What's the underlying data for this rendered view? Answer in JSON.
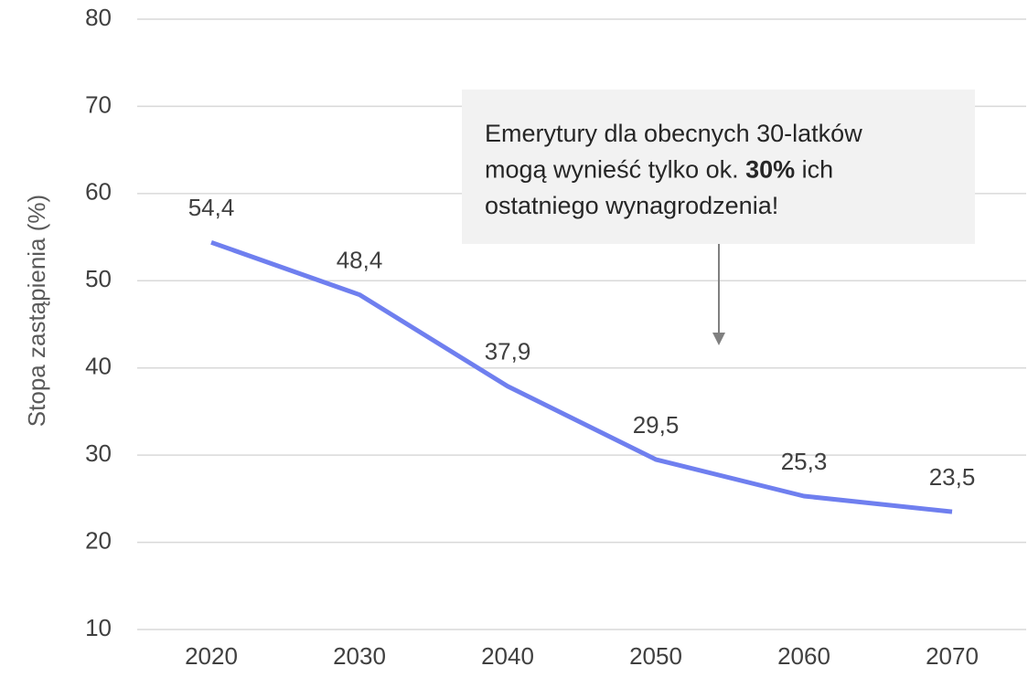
{
  "chart_data": {
    "type": "line",
    "y_label": "Stopa zastąpienia (%)",
    "categories": [
      "2020",
      "2030",
      "2040",
      "2050",
      "2060",
      "2070"
    ],
    "series": [
      {
        "name": "Stopa zastąpienia",
        "color": "#6f7fef",
        "values": [
          54.4,
          48.4,
          37.9,
          29.5,
          25.3,
          23.5
        ],
        "value_labels": [
          "54,4",
          "48,4",
          "37,9",
          "29,5",
          "25,3",
          "23,5"
        ]
      }
    ],
    "ylim": [
      10,
      80
    ],
    "yticks": [
      10,
      20,
      30,
      40,
      50,
      60,
      70,
      80
    ],
    "grid": true,
    "annotation": {
      "lines": [
        [
          {
            "text": "Emerytury dla obecnych 30-latków",
            "bold": false
          }
        ],
        [
          {
            "text": "mogą wynieść tylko ok. ",
            "bold": false
          },
          {
            "text": "30%",
            "bold": true
          },
          {
            "text": " ich",
            "bold": false
          }
        ],
        [
          {
            "text": "ostatniego wynagrodzenia!",
            "bold": false
          }
        ]
      ]
    }
  }
}
